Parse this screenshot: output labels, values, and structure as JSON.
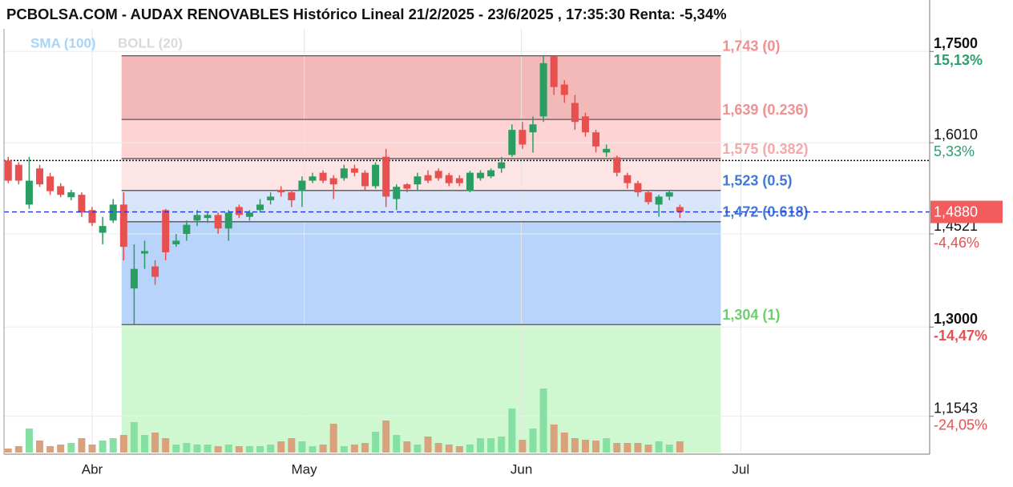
{
  "chart_data": {
    "type": "candlestick",
    "title": "PCBOLSA.COM - AUDAX RENOVABLES Histórico Lineal 21/2/2025 - 23/6/2025 , 17:35:30 Renta: -5,34%",
    "legend": [
      {
        "name": "SMA (100)",
        "color": "#a8d4f5"
      },
      {
        "name": "BOLL (20)",
        "color": "#d9d9d9"
      }
    ],
    "xlim": [
      -0.4,
      87.8
    ],
    "x_labels": [
      {
        "index": 8.0,
        "label": "Abr"
      },
      {
        "index": 28.2,
        "label": "May"
      },
      {
        "index": 48.9,
        "label": "Jun"
      },
      {
        "index": 69.8,
        "label": "Jul"
      }
    ],
    "ylim": [
      1.095,
      1.787
    ],
    "yticks": [
      {
        "value": 1.75,
        "label": "1,7500",
        "change": "15,13%",
        "change_color": "#2e9e6e",
        "bold": true
      },
      {
        "value": 1.601,
        "label": "1,6010",
        "change": "5,33%",
        "change_color": "#2e9e6e",
        "bold": false
      },
      {
        "value": 1.4521,
        "label": "1,4521",
        "change": "-4,46%",
        "change_color": "#e85050",
        "bold": false
      },
      {
        "value": 1.3,
        "label": "1,3000",
        "change": "-14,47%",
        "change_color": "#e85050",
        "bold": true
      },
      {
        "value": 1.1543,
        "label": "1,1543",
        "change": "-24,05%",
        "change_color": "#e85050",
        "bold": false
      }
    ],
    "last_price": {
      "value": 1.488,
      "label": "1,4880",
      "color": "#f25c5c",
      "line_color": "#2233dd"
    },
    "reference_price": 1.572,
    "fib_range": [
      10.8,
      67.9
    ],
    "fib_levels": [
      {
        "value": 1.743,
        "label": "1,743 (0)",
        "color": "#f09090",
        "zone_color": "rgba(228,100,100,0.45)"
      },
      {
        "value": 1.639,
        "label": "1,639 (0.236)",
        "color": "#f09090",
        "zone_color": "rgba(250,130,130,0.35)"
      },
      {
        "value": 1.575,
        "label": "1,575 (0.382)",
        "color": "#f5a8a8",
        "zone_color": "rgba(250,170,170,0.3)"
      },
      {
        "value": 1.523,
        "label": "1,523 (0.5)",
        "color": "#3f78d8",
        "zone_color": "rgba(130,170,240,0.3)"
      },
      {
        "value": 1.472,
        "label": "1,472 (0.618)",
        "color": "#3f78d8",
        "zone_color": "rgba(100,160,245,0.45)"
      },
      {
        "value": 1.304,
        "label": "1,304 (1)",
        "color": "#6cd06c",
        "zone_color": "rgba(150,240,150,0.45)"
      }
    ],
    "up_color": "#2a9d62",
    "down_color": "#e84f4f",
    "volume_up_color": "#86e0a4",
    "volume_down_color": "#d9a27c",
    "volume_lim": [
      0,
      100
    ],
    "open": [
      1.572,
      1.565,
      1.5,
      1.559,
      1.546,
      1.53,
      1.512,
      1.516,
      1.491,
      1.454,
      1.474,
      1.5,
      1.363,
      1.42,
      1.399,
      1.491,
      1.435,
      1.452,
      1.474,
      1.478,
      1.483,
      1.461,
      1.496,
      1.48,
      1.491,
      1.507,
      1.524,
      1.52,
      1.522,
      1.539,
      1.552,
      1.543,
      1.543,
      1.559,
      1.552,
      1.53,
      1.578,
      1.509,
      1.533,
      1.533,
      1.548,
      1.555,
      1.548,
      1.543,
      1.522,
      1.543,
      1.546,
      1.559,
      1.581,
      1.622,
      1.618,
      1.644,
      1.742,
      1.696,
      1.666,
      1.644,
      1.618,
      1.585,
      1.577,
      1.548,
      1.535,
      1.52,
      1.5,
      1.513,
      1.496
    ],
    "high": [
      1.578,
      1.569,
      1.578,
      1.565,
      1.552,
      1.535,
      1.524,
      1.52,
      1.496,
      1.48,
      1.509,
      1.52,
      1.435,
      1.441,
      1.409,
      1.493,
      1.452,
      1.474,
      1.491,
      1.487,
      1.487,
      1.491,
      1.5,
      1.491,
      1.509,
      1.52,
      1.53,
      1.524,
      1.546,
      1.552,
      1.556,
      1.548,
      1.565,
      1.565,
      1.556,
      1.569,
      1.591,
      1.533,
      1.535,
      1.552,
      1.556,
      1.559,
      1.552,
      1.548,
      1.555,
      1.556,
      1.559,
      1.578,
      1.631,
      1.635,
      1.644,
      1.742,
      1.743,
      1.703,
      1.679,
      1.65,
      1.622,
      1.598,
      1.58,
      1.552,
      1.539,
      1.524,
      1.516,
      1.524,
      1.5
    ],
    "low": [
      1.535,
      1.533,
      1.493,
      1.529,
      1.516,
      1.512,
      1.507,
      1.48,
      1.465,
      1.435,
      1.47,
      1.409,
      1.304,
      1.395,
      1.369,
      1.409,
      1.431,
      1.441,
      1.465,
      1.47,
      1.452,
      1.441,
      1.478,
      1.474,
      1.487,
      1.5,
      1.513,
      1.496,
      1.496,
      1.535,
      1.535,
      1.509,
      1.539,
      1.546,
      1.524,
      1.526,
      1.496,
      1.491,
      1.52,
      1.524,
      1.535,
      1.539,
      1.53,
      1.53,
      1.52,
      1.539,
      1.543,
      1.552,
      1.578,
      1.591,
      1.585,
      1.635,
      1.679,
      1.666,
      1.622,
      1.611,
      1.585,
      1.578,
      1.546,
      1.526,
      1.513,
      1.5,
      1.48,
      1.507,
      1.478
    ],
    "close": [
      1.539,
      1.539,
      1.539,
      1.533,
      1.522,
      1.516,
      1.52,
      1.487,
      1.47,
      1.465,
      1.5,
      1.431,
      1.395,
      1.424,
      1.382,
      1.422,
      1.441,
      1.467,
      1.483,
      1.483,
      1.461,
      1.487,
      1.483,
      1.487,
      1.5,
      1.513,
      1.52,
      1.507,
      1.539,
      1.546,
      1.539,
      1.533,
      1.559,
      1.552,
      1.53,
      1.565,
      1.513,
      1.529,
      1.526,
      1.546,
      1.539,
      1.543,
      1.535,
      1.535,
      1.552,
      1.552,
      1.556,
      1.569,
      1.622,
      1.598,
      1.631,
      1.731,
      1.692,
      1.679,
      1.635,
      1.618,
      1.595,
      1.591,
      1.552,
      1.535,
      1.52,
      1.504,
      1.513,
      1.52,
      1.488
    ],
    "volume": [
      5,
      8,
      30,
      15,
      8,
      10,
      12,
      18,
      10,
      15,
      18,
      22,
      38,
      22,
      25,
      18,
      10,
      12,
      10,
      10,
      8,
      10,
      8,
      8,
      8,
      10,
      14,
      18,
      14,
      8,
      10,
      36,
      8,
      10,
      12,
      26,
      40,
      22,
      14,
      10,
      20,
      12,
      10,
      8,
      10,
      18,
      18,
      20,
      55,
      16,
      30,
      80,
      35,
      25,
      18,
      16,
      15,
      18,
      12,
      12,
      12,
      10,
      14,
      10,
      14
    ]
  }
}
